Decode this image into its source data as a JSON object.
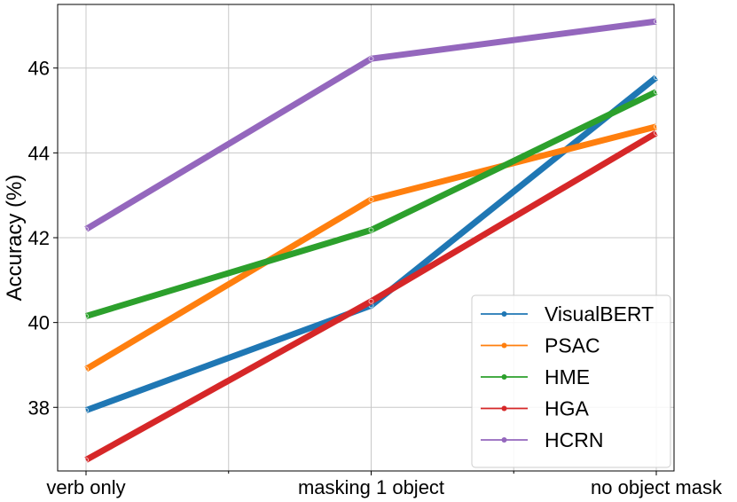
{
  "chart_data": {
    "type": "line",
    "title": "",
    "xlabel": "",
    "ylabel": "Accuracy (%)",
    "categories": [
      "verb only",
      "masking 1 object",
      "no object mask"
    ],
    "ylim": [
      36.5,
      47.5
    ],
    "yticks": [
      38,
      40,
      42,
      44,
      46
    ],
    "grid": true,
    "legend_position": "lower-right",
    "series": [
      {
        "name": "VisualBERT",
        "color": "#1f77b4",
        "values": [
          37.93,
          40.4,
          45.78
        ]
      },
      {
        "name": "PSAC",
        "color": "#ff7f0e",
        "values": [
          38.9,
          42.9,
          44.62
        ]
      },
      {
        "name": "HME",
        "color": "#2ca02c",
        "values": [
          40.15,
          42.18,
          45.44
        ]
      },
      {
        "name": "HGA",
        "color": "#d62728",
        "values": [
          36.76,
          40.5,
          44.47
        ]
      },
      {
        "name": "HCRN",
        "color": "#9467bd",
        "values": [
          42.2,
          46.22,
          47.1
        ]
      }
    ]
  }
}
